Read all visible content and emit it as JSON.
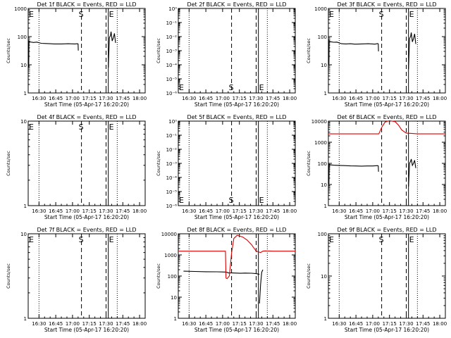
{
  "figure": {
    "xaxis_title": "Start Time (05-Apr-17 16:20:20)",
    "yaxis_title": "Counts/sec",
    "xticks": [
      "16:30",
      "16:45",
      "17:00",
      "17:15",
      "17:30",
      "17:45",
      "18:00"
    ],
    "colors": {
      "events": "#000000",
      "lld": "#dd0000"
    }
  },
  "chart_data": [
    {
      "type": "line",
      "title": "Det 1f BLACK = Events, RED = LLD",
      "ylog": true,
      "ylim": [
        1,
        1000
      ],
      "yticks": [
        "1",
        "10",
        "100",
        "1000"
      ],
      "markers": {
        "E": "E",
        "S": "S",
        "E2": "E"
      },
      "series": [
        {
          "color": "black",
          "x": [
            "16:20:50",
            "16:21:00",
            "16:22:00",
            "16:25:00",
            "16:28:00",
            "16:32:00",
            "16:36:00",
            "16:40:00",
            "16:44:00",
            "16:50:00",
            "16:56:00",
            "17:02:00",
            "17:04:30",
            "17:05:00",
            "17:05:10"
          ],
          "values": [
            8,
            70,
            65,
            62,
            64,
            58,
            57,
            56,
            55,
            55,
            56,
            55,
            56,
            55,
            32
          ]
        },
        {
          "color": "black",
          "x": [
            "17:32:00",
            "17:33:00",
            "17:34:00",
            "17:34:30",
            "17:35:30",
            "17:36:30",
            "17:37:30",
            "17:38:30"
          ],
          "values": [
            8,
            90,
            110,
            150,
            70,
            90,
            130,
            60
          ]
        }
      ]
    },
    {
      "type": "line",
      "title": "Det 2f BLACK = Events, RED = LLD",
      "ylog": true,
      "ylim": [
        1,
        1e-06
      ],
      "yticks": [
        "10⁻⁶",
        "10⁻⁵",
        "10⁻⁴",
        "10⁻³",
        "10⁻²",
        "10⁻¹",
        "10⁰"
      ],
      "markers": {
        "E": "E",
        "S": "S",
        "E2": "E"
      },
      "series": []
    },
    {
      "type": "line",
      "title": "Det 3f BLACK = Events, RED = LLD",
      "ylog": true,
      "ylim": [
        1,
        1000
      ],
      "yticks": [
        "1",
        "10",
        "100",
        "1000"
      ],
      "markers": {
        "E": "E",
        "S": "S",
        "E2": "E"
      },
      "series": [
        {
          "color": "black",
          "x": [
            "16:20:50",
            "16:21:00",
            "16:22:00",
            "16:25:00",
            "16:28:00",
            "16:32:00",
            "16:36:00",
            "16:40:00",
            "16:44:00",
            "16:50:00",
            "16:56:00",
            "17:02:00",
            "17:04:30",
            "17:05:00",
            "17:05:10"
          ],
          "values": [
            10,
            72,
            66,
            63,
            64,
            56,
            55,
            56,
            54,
            55,
            56,
            54,
            57,
            55,
            30
          ]
        },
        {
          "color": "black",
          "x": [
            "17:32:00",
            "17:33:00",
            "17:34:00",
            "17:34:30",
            "17:35:30",
            "17:36:30",
            "17:37:30",
            "17:38:30"
          ],
          "values": [
            7,
            85,
            105,
            140,
            65,
            85,
            125,
            55
          ]
        }
      ]
    },
    {
      "type": "line",
      "title": "Det 4f BLACK = Events, RED = LLD",
      "ylog": true,
      "ylim": [
        1,
        10
      ],
      "yticks": [
        "1",
        "10"
      ],
      "markers": {
        "E": "E",
        "S": "S",
        "E2": "E"
      },
      "series": []
    },
    {
      "type": "line",
      "title": "Det 5f BLACK = Events, RED = LLD",
      "ylog": true,
      "ylim": [
        1,
        1e-06
      ],
      "yticks": [
        "10⁻⁶",
        "10⁻⁵",
        "10⁻⁴",
        "10⁻³",
        "10⁻²",
        "10⁻¹",
        "10⁰"
      ],
      "markers": {
        "E": "E",
        "S": "S",
        "E2": "E"
      },
      "series": []
    },
    {
      "type": "line",
      "title": "Det 6f BLACK = Events, RED = LLD",
      "ylog": true,
      "ylim": [
        1,
        10000
      ],
      "yticks": [
        "1",
        "10",
        "100",
        "1000",
        "10000"
      ],
      "markers": {
        "E": "",
        "S": "",
        "E2": ""
      },
      "series": [
        {
          "color": "black",
          "x": [
            "16:20:50",
            "16:21:00",
            "16:22:00",
            "16:25:00",
            "16:30:00",
            "16:35:00",
            "16:40:00",
            "16:45:00",
            "16:50:00",
            "16:55:00",
            "17:00:00",
            "17:04:30",
            "17:05:00",
            "17:05:10"
          ],
          "values": [
            10,
            90,
            85,
            82,
            80,
            78,
            76,
            75,
            74,
            75,
            75,
            78,
            75,
            40
          ]
        },
        {
          "color": "black",
          "x": [
            "17:32:00",
            "17:33:00",
            "17:34:00",
            "17:34:30",
            "17:35:30",
            "17:36:30",
            "17:37:30",
            "17:38:30"
          ],
          "values": [
            8,
            100,
            130,
            160,
            80,
            100,
            140,
            60
          ]
        },
        {
          "color": "red",
          "x": [
            "16:20:20",
            "16:40:00",
            "17:00:00",
            "17:05:30",
            "17:08:00",
            "17:11:00",
            "17:15:00",
            "17:20:00",
            "17:23:00",
            "17:26:00",
            "17:30:00",
            "17:36:00",
            "17:40:00",
            "18:05:00"
          ],
          "values": [
            2500,
            2500,
            2500,
            2500,
            5000,
            9000,
            10500,
            9500,
            6500,
            3800,
            2700,
            2600,
            2500,
            2500
          ]
        }
      ]
    },
    {
      "type": "line",
      "title": "Det 7f BLACK = Events, RED = LLD",
      "ylog": true,
      "ylim": [
        1,
        10
      ],
      "yticks": [
        "1",
        "10"
      ],
      "markers": {
        "E": "E",
        "S": "S",
        "E2": "E"
      },
      "series": []
    },
    {
      "type": "line",
      "title": "Det 8f BLACK = Events, RED = LLD",
      "ylog": true,
      "ylim": [
        1,
        10000
      ],
      "yticks": [
        "1",
        "10",
        "100",
        "1000",
        "10000"
      ],
      "markers": {
        "E": "",
        "S": "",
        "E2": ""
      },
      "series": [
        {
          "color": "black",
          "x": [
            "16:25:00",
            "16:35:00",
            "16:45:00",
            "16:55:00",
            "17:02:00",
            "17:04:00",
            "17:05:00",
            "17:08:00",
            "17:12:00",
            "17:16:00",
            "17:20:00",
            "17:26:00",
            "17:30:00",
            "17:33:00"
          ],
          "values": [
            170,
            165,
            160,
            158,
            155,
            150,
            140,
            140,
            138,
            135,
            138,
            136,
            130,
            120
          ]
        },
        {
          "color": "black",
          "x": [
            "17:33:00",
            "17:34:00",
            "17:35:00",
            "17:36:00"
          ],
          "values": [
            5,
            40,
            150,
            200
          ]
        },
        {
          "color": "red",
          "x": [
            "16:20:20",
            "16:40:00",
            "16:55:00",
            "17:02:30",
            "17:03:00",
            "17:04:00",
            "17:06:00",
            "17:08:00",
            "17:10:00",
            "17:13:00",
            "17:18:00",
            "17:22:00",
            "17:26:00",
            "17:30:00",
            "17:34:00",
            "17:36:00",
            "17:38:00",
            "17:45:00",
            "18:05:00"
          ],
          "values": [
            1500,
            1500,
            1500,
            1500,
            80,
            75,
            100,
            1200,
            6000,
            8500,
            7000,
            5000,
            3000,
            1500,
            1300,
            1500,
            1550,
            1500,
            1500
          ]
        }
      ]
    },
    {
      "type": "line",
      "title": "Det 9f BLACK = Events, RED = LLD",
      "ylog": true,
      "ylim": [
        1,
        100
      ],
      "yticks": [
        "1",
        "10",
        "100"
      ],
      "markers": {
        "E": "E",
        "S": "S",
        "E2": "E"
      },
      "series": []
    }
  ]
}
